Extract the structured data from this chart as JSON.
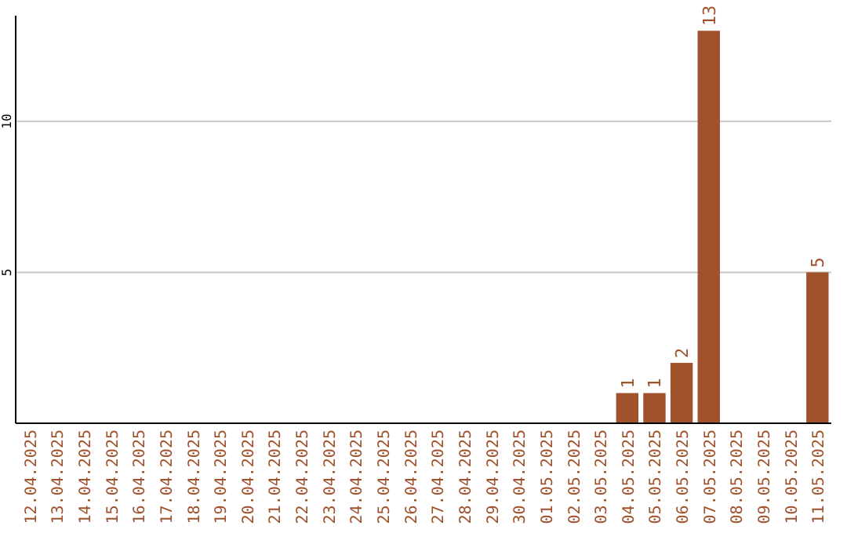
{
  "chart_data": {
    "type": "bar",
    "categories": [
      "12.04.2025",
      "13.04.2025",
      "14.04.2025",
      "15.04.2025",
      "16.04.2025",
      "17.04.2025",
      "18.04.2025",
      "19.04.2025",
      "20.04.2025",
      "21.04.2025",
      "22.04.2025",
      "23.04.2025",
      "24.04.2025",
      "25.04.2025",
      "26.04.2025",
      "27.04.2025",
      "28.04.2025",
      "29.04.2025",
      "30.04.2025",
      "01.05.2025",
      "02.05.2025",
      "03.05.2025",
      "04.05.2025",
      "05.05.2025",
      "06.05.2025",
      "07.05.2025",
      "08.05.2025",
      "09.05.2025",
      "10.05.2025",
      "11.05.2025"
    ],
    "values": [
      0,
      0,
      0,
      0,
      0,
      0,
      0,
      0,
      0,
      0,
      0,
      0,
      0,
      0,
      0,
      0,
      0,
      0,
      0,
      0,
      0,
      0,
      1,
      1,
      2,
      13,
      0,
      0,
      0,
      5
    ],
    "value_labels": [
      null,
      null,
      null,
      null,
      null,
      null,
      null,
      null,
      null,
      null,
      null,
      null,
      null,
      null,
      null,
      null,
      null,
      null,
      null,
      null,
      null,
      null,
      "1",
      "1",
      "2",
      "13",
      null,
      null,
      null,
      "5"
    ],
    "color": "#a0522d",
    "ylim": [
      0,
      13.5
    ],
    "yticks": [
      5,
      10
    ],
    "grid": "y"
  }
}
